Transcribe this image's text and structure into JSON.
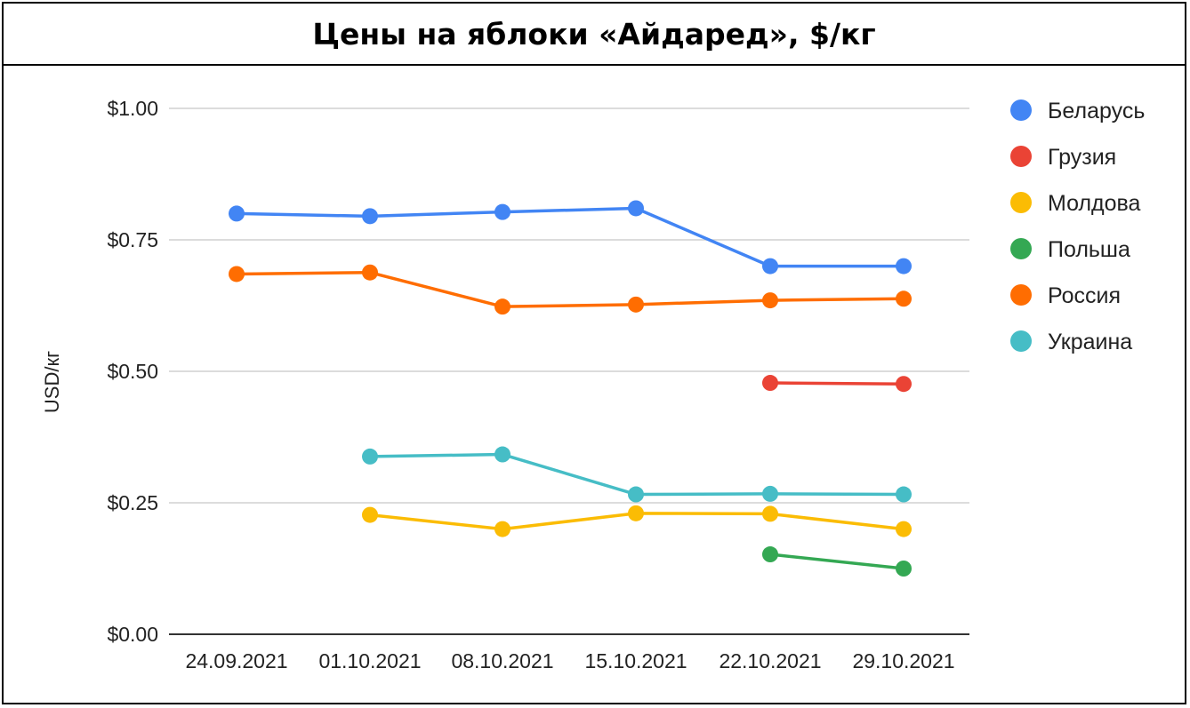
{
  "chart_data": {
    "type": "line",
    "title": "Цены на яблоки «Айдаред», $/кг",
    "xlabel": "",
    "ylabel": "USD/кг",
    "ylim": [
      0,
      1
    ],
    "y_ticks": [
      "$0.00",
      "$0.25",
      "$0.50",
      "$0.75",
      "$1.00"
    ],
    "y_tick_values": [
      0,
      0.25,
      0.5,
      0.75,
      1.0
    ],
    "categories": [
      "24.09.2021",
      "01.10.2021",
      "08.10.2021",
      "15.10.2021",
      "22.10.2021",
      "29.10.2021"
    ],
    "grid": true,
    "legend_position": "right",
    "series": [
      {
        "name": "Беларусь",
        "color": "#4285F4",
        "values": [
          0.8,
          0.795,
          0.803,
          0.81,
          0.7,
          0.7
        ]
      },
      {
        "name": "Грузия",
        "color": "#EA4335",
        "values": [
          null,
          null,
          null,
          null,
          0.478,
          0.476
        ]
      },
      {
        "name": "Молдова",
        "color": "#FBBC04",
        "values": [
          null,
          0.227,
          0.2,
          0.23,
          0.229,
          0.2
        ]
      },
      {
        "name": "Польша",
        "color": "#34A853",
        "values": [
          null,
          null,
          null,
          null,
          0.152,
          0.125
        ]
      },
      {
        "name": "Россия",
        "color": "#FF6D01",
        "values": [
          0.685,
          0.688,
          0.623,
          0.627,
          0.635,
          0.638
        ]
      },
      {
        "name": "Украина",
        "color": "#46BDC6",
        "values": [
          null,
          0.338,
          0.342,
          0.266,
          0.267,
          0.266
        ]
      }
    ]
  }
}
